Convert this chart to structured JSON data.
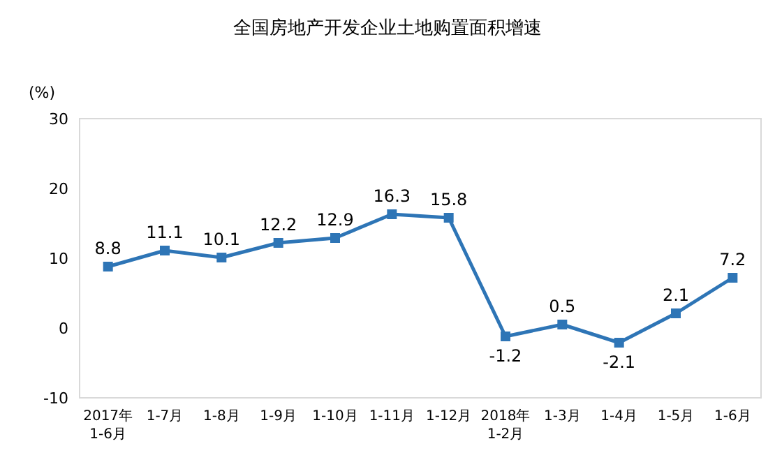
{
  "chart_data": {
    "type": "line",
    "title": "全国房地产开发企业土地购置面积增速",
    "ylabel": "(%)",
    "categories": [
      "2017年\n1-6月",
      "1-7月",
      "1-8月",
      "1-9月",
      "1-10月",
      "1-11月",
      "1-12月",
      "2018年\n1-2月",
      "1-3月",
      "1-4月",
      "1-5月",
      "1-6月"
    ],
    "values": [
      8.8,
      11.1,
      10.1,
      12.2,
      12.9,
      16.3,
      15.8,
      -1.2,
      0.5,
      -2.1,
      2.1,
      7.2
    ],
    "color": "#2e75b6",
    "ylim": [
      -10,
      30
    ],
    "yticks": [
      -10,
      0,
      10,
      20,
      30
    ],
    "marker": "square",
    "line_style": "solid",
    "data_labels": true
  }
}
